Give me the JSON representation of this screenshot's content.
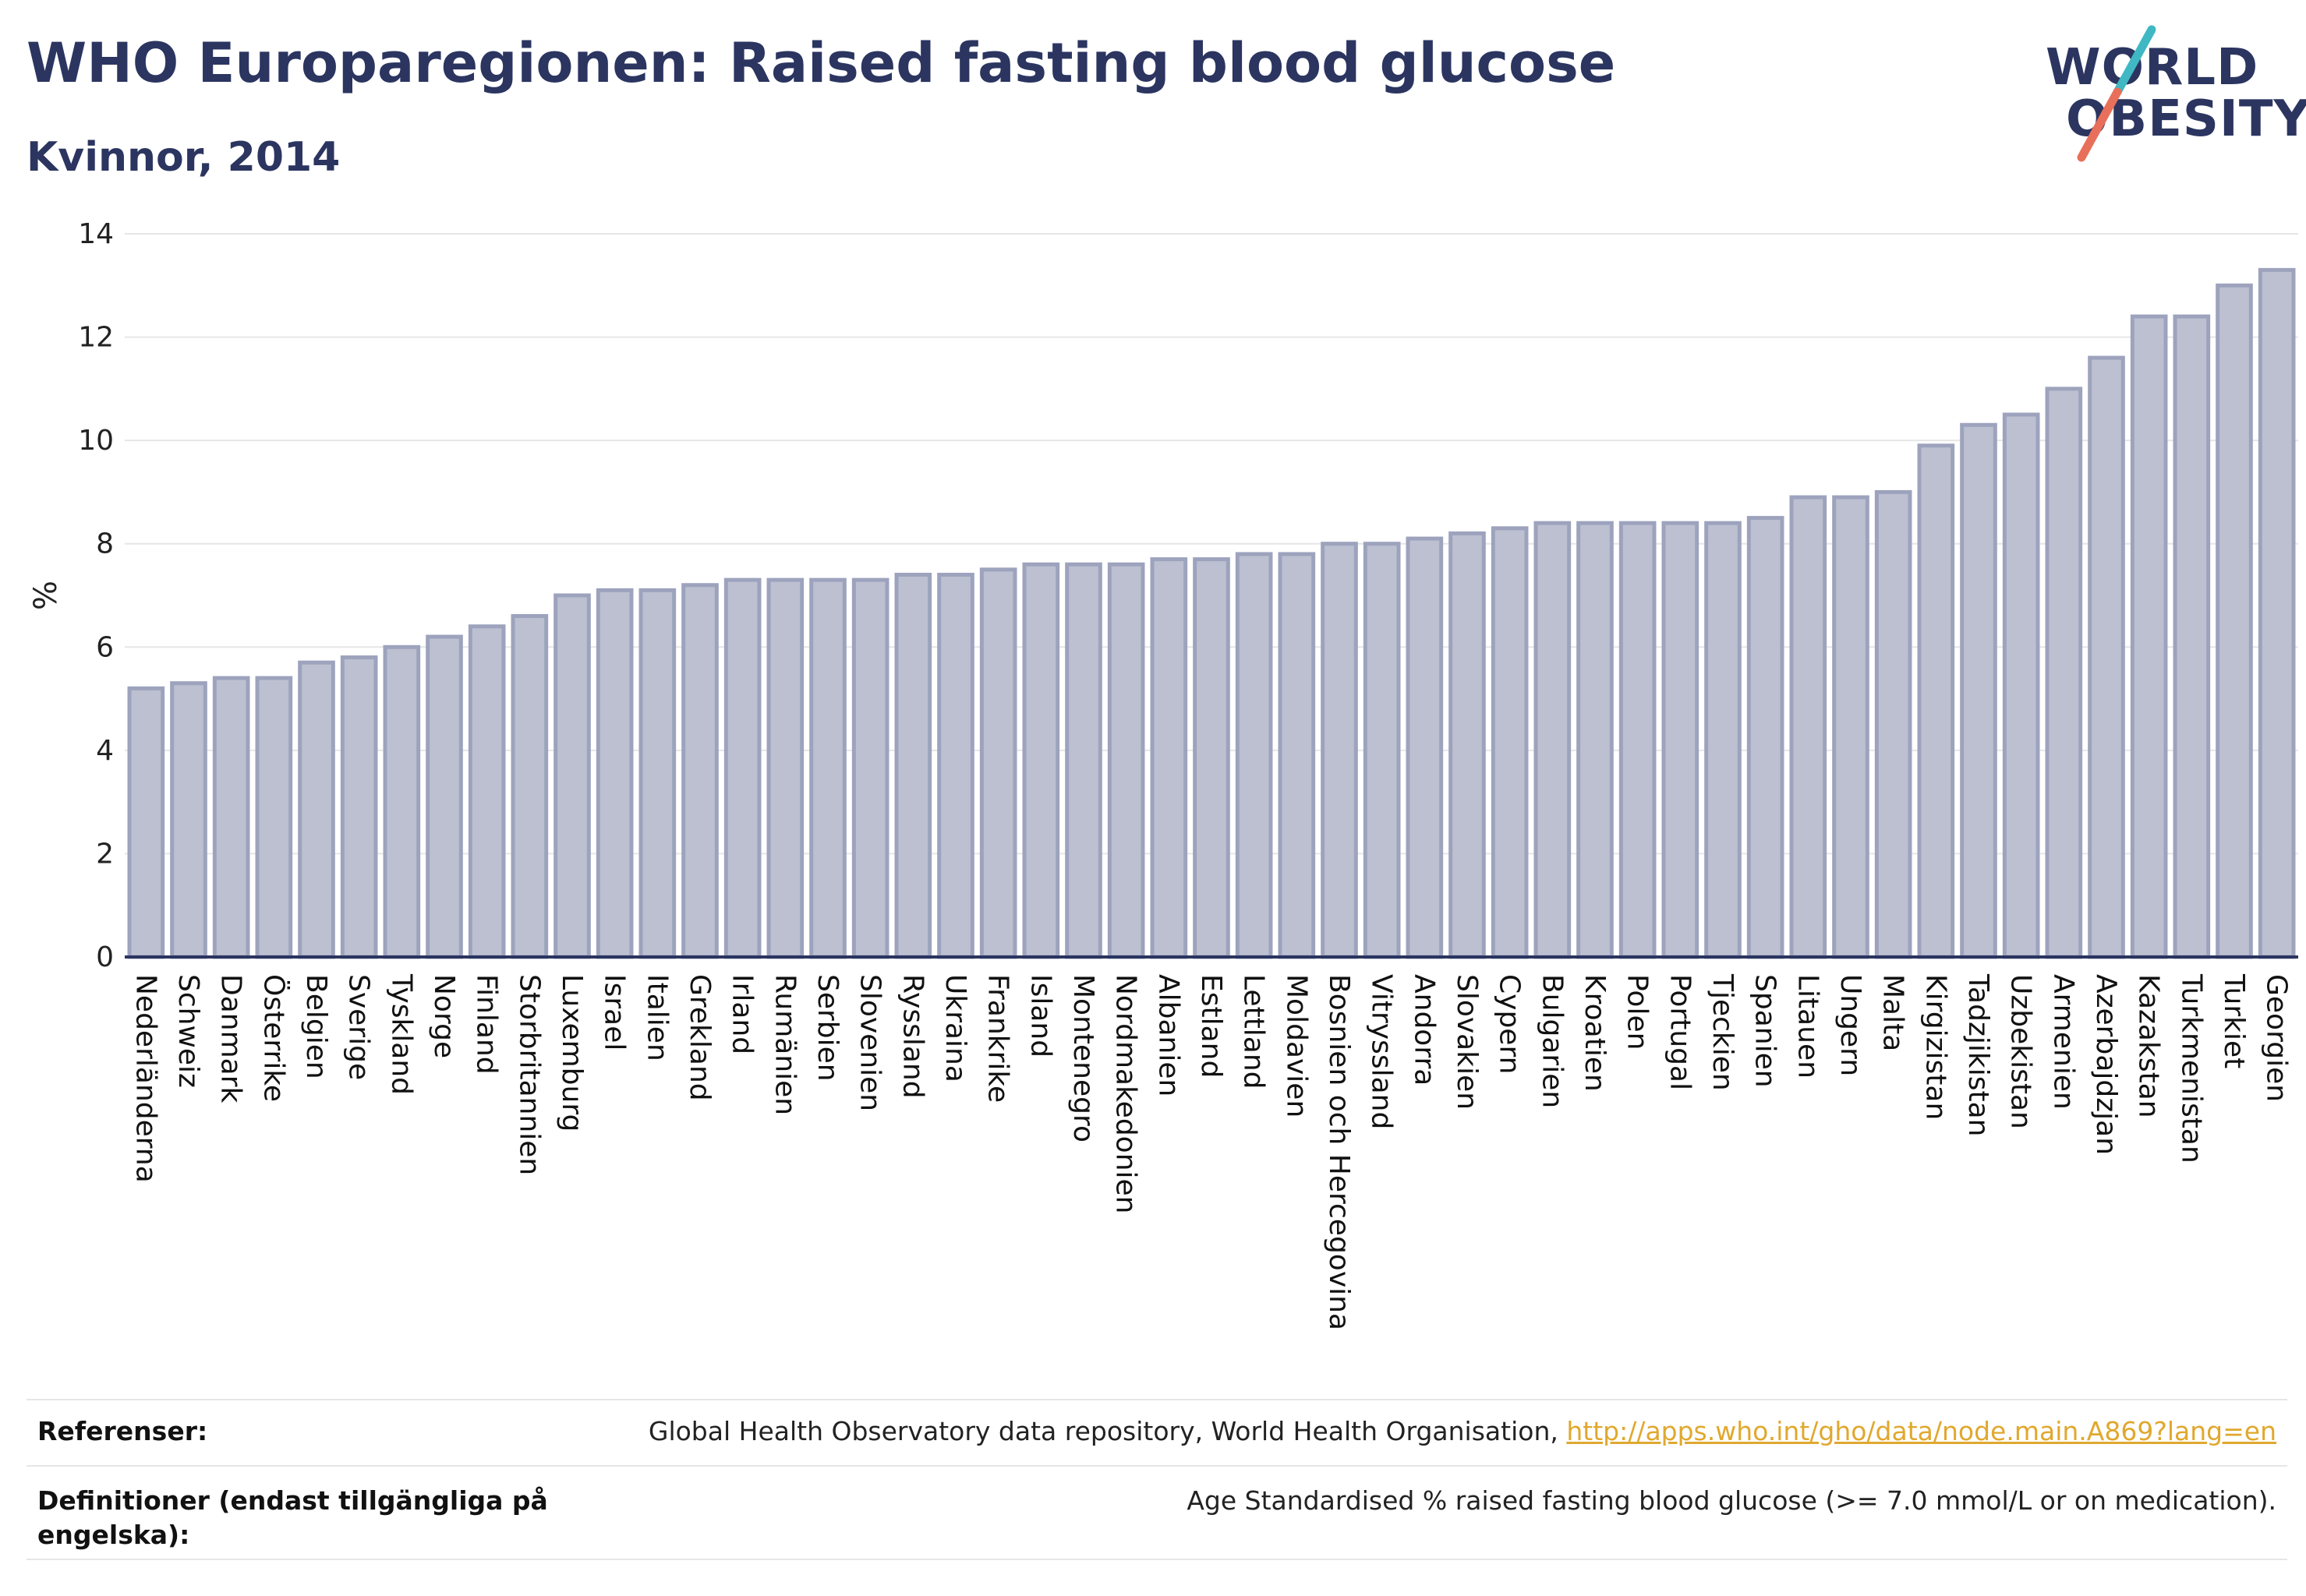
{
  "header": {
    "title": "WHO Europaregionen: Raised fasting blood glucose",
    "subtitle": "Kvinnor, 2014"
  },
  "logo": {
    "line1": "WORLD",
    "line2": "OBESITY",
    "slash_colors": [
      "#3fb8c4",
      "#e8705a"
    ]
  },
  "colors": {
    "bar_fill": "#bcc0d1",
    "bar_stroke": "#9da3bd",
    "axis": "#2b3560",
    "grid": "#e6e6e6",
    "text": "#2b3560"
  },
  "chart_data": {
    "type": "bar",
    "title": "",
    "xlabel": "",
    "ylabel": "%",
    "ylim": [
      0,
      14
    ],
    "yticks": [
      0,
      2,
      4,
      6,
      8,
      10,
      12,
      14
    ],
    "grid": true,
    "categories": [
      "Nederländerna",
      "Schweiz",
      "Danmark",
      "Österrike",
      "Belgien",
      "Sverige",
      "Tyskland",
      "Norge",
      "Finland",
      "Storbritannien",
      "Luxemburg",
      "Israel",
      "Italien",
      "Grekland",
      "Irland",
      "Rumänien",
      "Serbien",
      "Slovenien",
      "Ryssland",
      "Ukraina",
      "Frankrike",
      "Island",
      "Montenegro",
      "Nordmakedonien",
      "Albanien",
      "Estland",
      "Lettland",
      "Moldavien",
      "Bosnien och Hercegovina",
      "Vitryssland",
      "Andorra",
      "Slovakien",
      "Cypern",
      "Bulgarien",
      "Kroatien",
      "Polen",
      "Portugal",
      "Tjeckien",
      "Spanien",
      "Litauen",
      "Ungern",
      "Malta",
      "Kirgizistan",
      "Tadzjikistan",
      "Uzbekistan",
      "Armenien",
      "Azerbajdzjan",
      "Kazakstan",
      "Turkmenistan",
      "Turkiet",
      "Georgien"
    ],
    "values": [
      5.2,
      5.3,
      5.4,
      5.4,
      5.7,
      5.8,
      6.0,
      6.2,
      6.4,
      6.6,
      7.0,
      7.1,
      7.1,
      7.2,
      7.3,
      7.3,
      7.3,
      7.3,
      7.4,
      7.4,
      7.5,
      7.6,
      7.6,
      7.6,
      7.7,
      7.7,
      7.8,
      7.8,
      8.0,
      8.0,
      8.1,
      8.2,
      8.3,
      8.4,
      8.4,
      8.4,
      8.4,
      8.4,
      8.5,
      8.9,
      8.9,
      9.0,
      9.9,
      10.3,
      10.5,
      11.0,
      11.6,
      12.4,
      12.4,
      13.0,
      13.3
    ]
  },
  "footer": {
    "references_label": "Referenser:",
    "references_text": "Global Health Observatory data repository, World Health Organisation, ",
    "references_link": "http://apps.who.int/gho/data/node.main.A869?lang=en",
    "definitions_label_line1": "Definitioner (endast tillgängliga på",
    "definitions_label_line2": "engelska):",
    "definitions_text": "Age Standardised % raised fasting blood glucose (>= 7.0 mmol/L or on medication)."
  }
}
